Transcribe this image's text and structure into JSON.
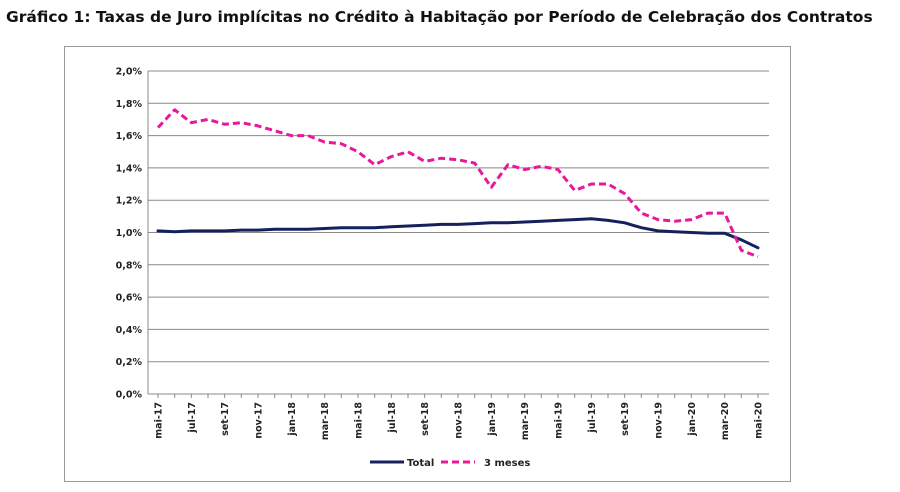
{
  "title": "Gráfico 1: Taxas de Juro implícitas no Crédito à Habitação por Período de Celebração dos Contratos",
  "colors": {
    "total": "#14215c",
    "tres_meses": "#e6199b",
    "grid": "#8a8a8a"
  },
  "chart_data": {
    "type": "line",
    "ylim": [
      0,
      2.0
    ],
    "yticks": [
      "0,0%",
      "0,2%",
      "0,4%",
      "0,6%",
      "0,8%",
      "1,0%",
      "1,2%",
      "1,4%",
      "1,6%",
      "1,8%",
      "2,0%"
    ],
    "ytick_values": [
      0,
      0.2,
      0.4,
      0.6,
      0.8,
      1.0,
      1.2,
      1.4,
      1.6,
      1.8,
      2.0
    ],
    "grid": true,
    "legend_position": "bottom",
    "x": [
      "mai-17",
      "jun-17",
      "jul-17",
      "ago-17",
      "set-17",
      "out-17",
      "nov-17",
      "dez-17",
      "jan-18",
      "fev-18",
      "mar-18",
      "abr-18",
      "mai-18",
      "jun-18",
      "jul-18",
      "ago-18",
      "set-18",
      "out-18",
      "nov-18",
      "dez-18",
      "jan-19",
      "fev-19",
      "mar-19",
      "abr-19",
      "mai-19",
      "jun-19",
      "jul-19",
      "ago-19",
      "set-19",
      "out-19",
      "nov-19",
      "dez-19",
      "jan-20",
      "fev-20",
      "mar-20",
      "abr-20",
      "mai-20"
    ],
    "xtick_labels": [
      "mai-17",
      "jul-17",
      "set-17",
      "nov-17",
      "jan-18",
      "mar-18",
      "mai-18",
      "jul-18",
      "set-18",
      "nov-18",
      "jan-19",
      "mar-19",
      "mai-19",
      "jul-19",
      "set-19",
      "nov-19",
      "jan-20",
      "mar-20",
      "mai-20"
    ],
    "series": [
      {
        "name": "Total",
        "style": "solid",
        "values": [
          1.01,
          1.005,
          1.01,
          1.01,
          1.01,
          1.015,
          1.015,
          1.02,
          1.02,
          1.02,
          1.025,
          1.03,
          1.03,
          1.03,
          1.035,
          1.04,
          1.045,
          1.05,
          1.05,
          1.055,
          1.06,
          1.06,
          1.065,
          1.07,
          1.075,
          1.08,
          1.085,
          1.075,
          1.06,
          1.03,
          1.01,
          1.005,
          1.0,
          0.995,
          0.995,
          0.955,
          0.905
        ]
      },
      {
        "name": "3 meses",
        "style": "dashed",
        "values": [
          1.65,
          1.76,
          1.68,
          1.7,
          1.67,
          1.68,
          1.66,
          1.63,
          1.6,
          1.6,
          1.56,
          1.55,
          1.5,
          1.42,
          1.47,
          1.5,
          1.44,
          1.46,
          1.45,
          1.43,
          1.28,
          1.42,
          1.39,
          1.41,
          1.39,
          1.26,
          1.3,
          1.3,
          1.24,
          1.12,
          1.08,
          1.07,
          1.08,
          1.12,
          1.12,
          0.89,
          0.85
        ]
      }
    ]
  }
}
